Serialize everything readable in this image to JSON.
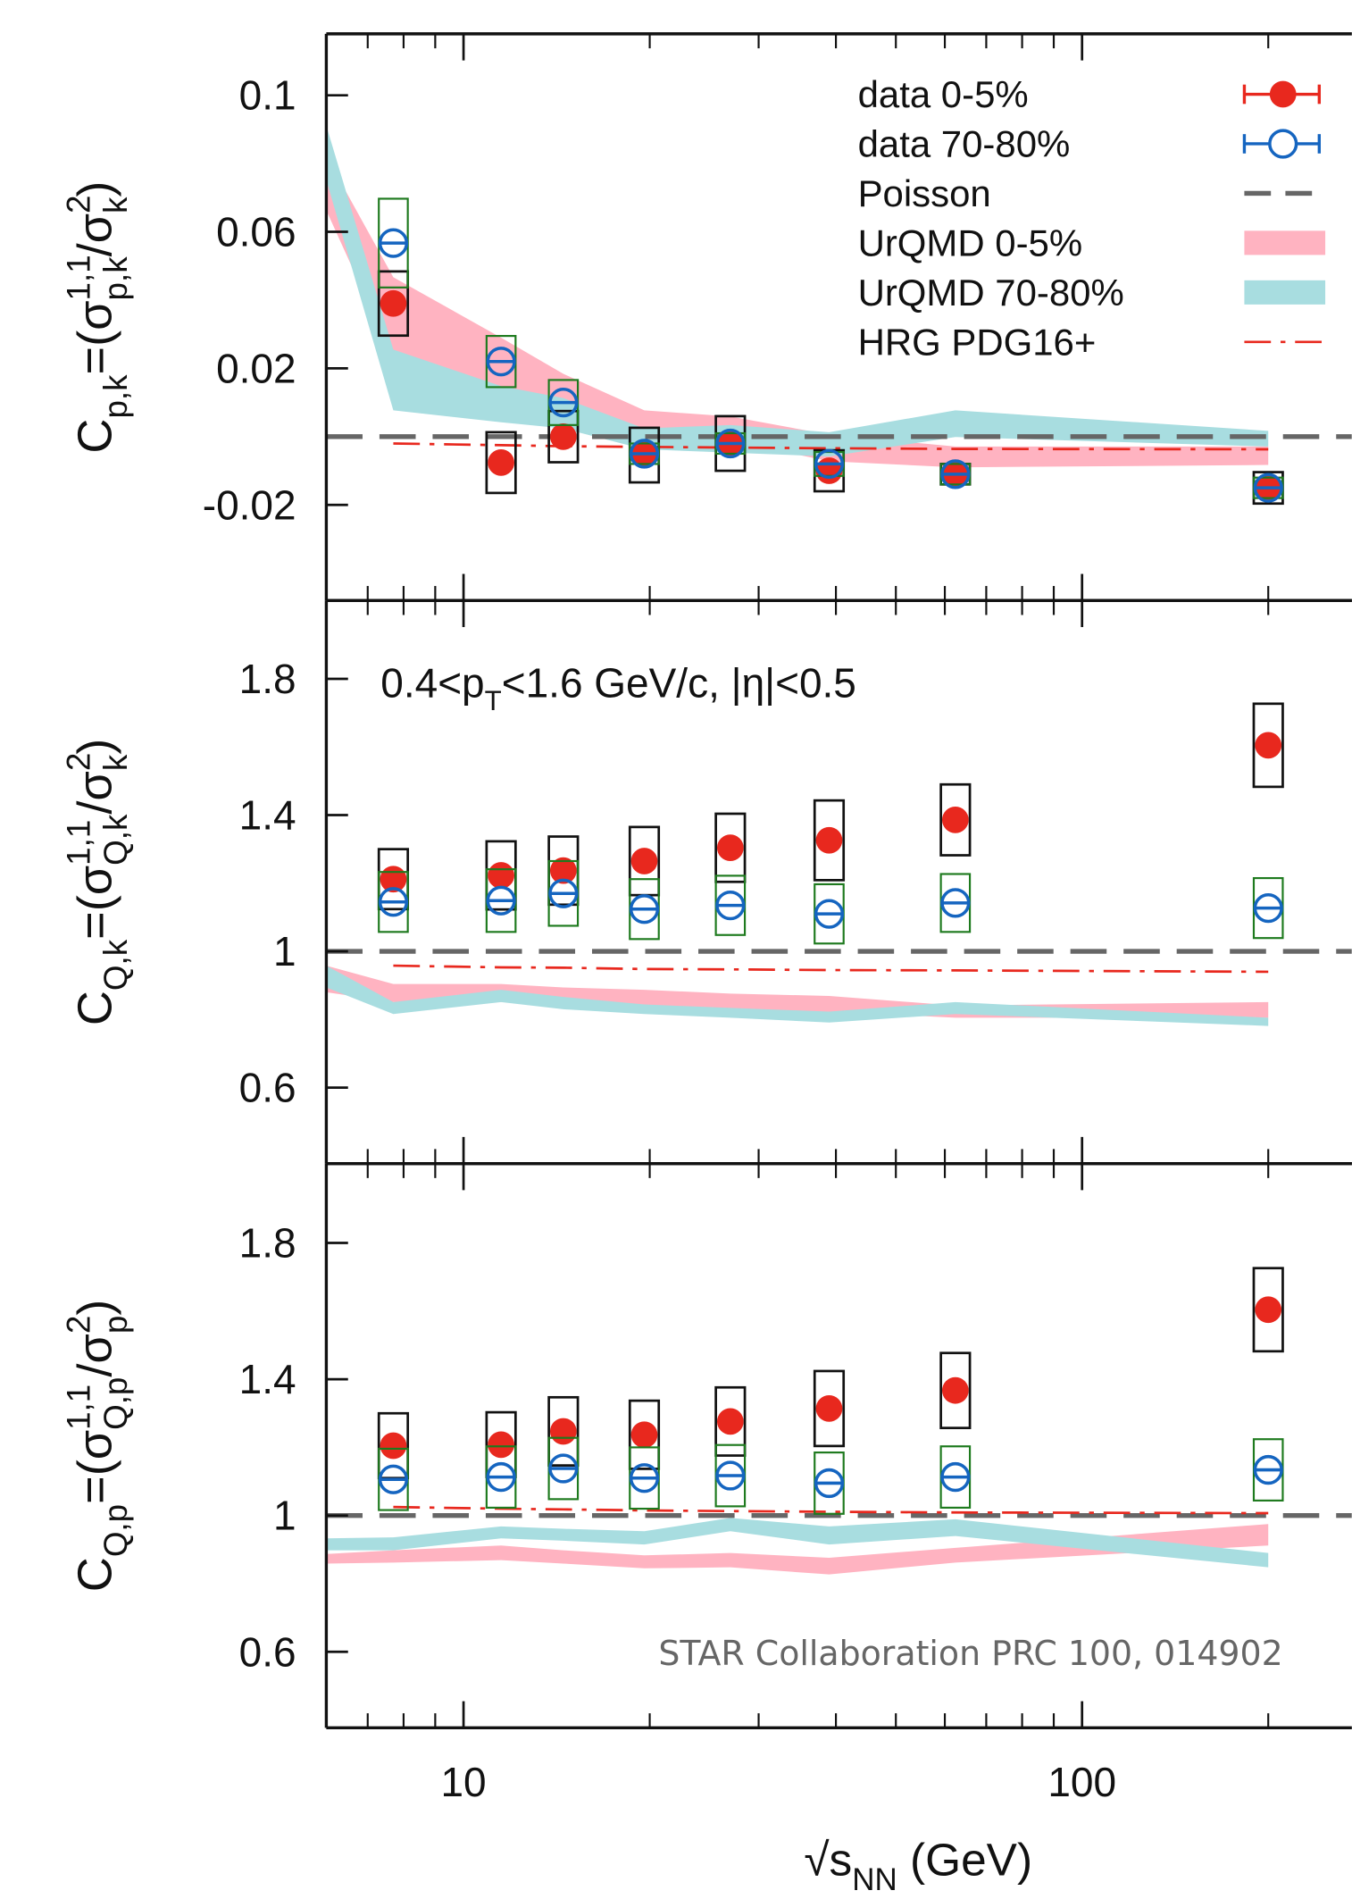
{
  "chart_data": [
    {
      "type": "scatter",
      "y_label": [
        {
          "text": "C",
          "sub": "p,k"
        },
        {
          "text": "=(σ",
          "sup": "1,1",
          "sub": "p,k"
        },
        {
          "text": "/σ",
          "sup": "2",
          "sub": "k"
        },
        {
          "text": ")"
        }
      ],
      "xlim": [
        6,
        273
      ],
      "xticks": [
        10,
        100
      ],
      "xminorticks": [
        7,
        8,
        9,
        20,
        30,
        40,
        50,
        60,
        70,
        80,
        90,
        200
      ],
      "ylim": [
        -0.048,
        0.118
      ],
      "yticks": [
        -0.02,
        0.02,
        0.06,
        0.1
      ],
      "legend": "upper right",
      "series": [
        {
          "name": "data 0-5%",
          "kind": "points",
          "marker": "filled",
          "color": "#e8281e",
          "sys_color": "#111111",
          "x": [
            7.7,
            11.5,
            14.5,
            19.6,
            27,
            39,
            62.4,
            200
          ],
          "values": [
            0.039,
            -0.0076,
            0.0,
            -0.0054,
            -0.002,
            -0.01,
            -0.011,
            -0.015
          ],
          "sys": [
            0.0094,
            0.0089,
            0.0075,
            0.008,
            0.008,
            0.006,
            0.003,
            0.0046
          ]
        },
        {
          "name": "data 70-80%",
          "kind": "points",
          "marker": "open",
          "color": "#1565c0",
          "sys_color": "#1e7a1e",
          "x": [
            7.7,
            11.5,
            14.5,
            19.6,
            27,
            39,
            62.4,
            200
          ],
          "values": [
            0.0567,
            0.022,
            0.01,
            -0.005,
            -0.002,
            -0.008,
            -0.011,
            -0.015
          ],
          "sys": [
            0.013,
            0.0075,
            0.0066,
            0.003,
            0.003,
            0.0035,
            0.003,
            0.003
          ]
        },
        {
          "name": "Poisson",
          "kind": "hline",
          "color": "#666666",
          "y": 0
        },
        {
          "name": "UrQMD 0-5%",
          "kind": "band",
          "color": "#ffb3c1",
          "x": [
            6,
            7.7,
            11.5,
            14.5,
            19.6,
            27,
            39,
            62.4,
            200
          ],
          "lower": [
            0.0663,
            0.023,
            0.0113,
            0.0095,
            0.0006,
            -0.0012,
            -0.0072,
            -0.009,
            -0.0083
          ],
          "upper": [
            0.0822,
            0.0467,
            0.029,
            0.0184,
            0.0077,
            0.0059,
            0.0006,
            -0.0029,
            -0.0029
          ]
        },
        {
          "name": "UrQMD 70-80%",
          "kind": "band",
          "color": "#a8dde0",
          "x": [
            6,
            7.7,
            11.5,
            14.5,
            19.6,
            27,
            39,
            62.4,
            200
          ],
          "lower": [
            0.0752,
            0.0077,
            0.0042,
            0.0024,
            -0.0037,
            -0.0047,
            -0.0058,
            -0.0001,
            -0.0029
          ],
          "upper": [
            0.0911,
            0.0255,
            0.0148,
            0.0113,
            0.0024,
            0.0034,
            0.0013,
            0.0077,
            0.0017
          ]
        },
        {
          "name": "HRG PDG16+",
          "kind": "line",
          "color": "#e8281e",
          "x": [
            7.7,
            11.5,
            14.5,
            19.6,
            27,
            39,
            62.4,
            200
          ],
          "values": [
            -0.002,
            -0.0025,
            -0.0028,
            -0.003,
            -0.0032,
            -0.0034,
            -0.0036,
            -0.0037
          ]
        }
      ]
    },
    {
      "type": "scatter",
      "y_label": [
        {
          "text": "C",
          "sub": "Q,k"
        },
        {
          "text": "=(σ",
          "sup": "1,1",
          "sub": "Q,k"
        },
        {
          "text": "/σ",
          "sup": "2",
          "sub": "k"
        },
        {
          "text": ")"
        }
      ],
      "annotation": [
        {
          "text": "0.4<p",
          "sub": "T"
        },
        {
          "text": "<1.6 GeV/c, |η|<0.5"
        }
      ],
      "xlim": [
        6,
        273
      ],
      "xticks": [
        10,
        100
      ],
      "xminorticks": [
        7,
        8,
        9,
        20,
        30,
        40,
        50,
        60,
        70,
        80,
        90,
        200
      ],
      "ylim": [
        0.377,
        2.03
      ],
      "yticks": [
        0.6,
        1,
        1.4,
        1.8
      ],
      "series": [
        {
          "kind": "points",
          "marker": "filled",
          "color": "#e8281e",
          "sys_color": "#111111",
          "x": [
            7.7,
            11.5,
            14.5,
            19.6,
            27,
            39,
            62.4,
            200
          ],
          "values": [
            1.212,
            1.223,
            1.237,
            1.265,
            1.304,
            1.326,
            1.386,
            1.605
          ],
          "sys": [
            0.088,
            0.1,
            0.1,
            0.1,
            0.1,
            0.117,
            0.104,
            0.122
          ]
        },
        {
          "kind": "points",
          "marker": "open",
          "color": "#1565c0",
          "sys_color": "#1e7a1e",
          "x": [
            7.7,
            11.5,
            14.5,
            19.6,
            27,
            39,
            62.4,
            200
          ],
          "values": [
            1.145,
            1.149,
            1.17,
            1.124,
            1.135,
            1.11,
            1.142,
            1.127
          ],
          "sys": [
            0.088,
            0.092,
            0.095,
            0.088,
            0.087,
            0.087,
            0.085,
            0.088
          ]
        },
        {
          "kind": "hline",
          "color": "#666666",
          "y": 1
        },
        {
          "kind": "band",
          "color": "#ffb3c1",
          "x": [
            6,
            7.7,
            11.5,
            14.5,
            19.6,
            27,
            39,
            62.4,
            200
          ],
          "lower": [
            0.88,
            0.851,
            0.851,
            0.844,
            0.841,
            0.823,
            0.823,
            0.805,
            0.805
          ],
          "upper": [
            0.958,
            0.904,
            0.904,
            0.894,
            0.887,
            0.876,
            0.869,
            0.841,
            0.851
          ]
        },
        {
          "kind": "band",
          "color": "#a8dde0",
          "x": [
            6,
            7.7,
            11.5,
            14.5,
            19.6,
            27,
            39,
            62.4,
            200
          ],
          "lower": [
            0.894,
            0.816,
            0.851,
            0.83,
            0.816,
            0.805,
            0.791,
            0.816,
            0.781
          ],
          "upper": [
            0.958,
            0.851,
            0.887,
            0.866,
            0.844,
            0.834,
            0.823,
            0.851,
            0.805
          ]
        },
        {
          "kind": "line",
          "color": "#e8281e",
          "x": [
            7.7,
            11.5,
            14.5,
            19.6,
            27,
            39,
            62.4,
            200
          ],
          "values": [
            0.958,
            0.953,
            0.952,
            0.948,
            0.947,
            0.945,
            0.944,
            0.94
          ]
        }
      ]
    },
    {
      "type": "scatter",
      "y_label": [
        {
          "text": "C",
          "sub": "Q,p"
        },
        {
          "text": "=(σ",
          "sup": "1,1",
          "sub": "Q,p"
        },
        {
          "text": "/σ",
          "sup": "2",
          "sub": "p"
        },
        {
          "text": ")"
        }
      ],
      "x_label": [
        {
          "text": "√s",
          "sub": "NN"
        },
        {
          "text": "  (GeV)"
        }
      ],
      "credit": "STAR Collaboration PRC 100, 014902",
      "xlim": [
        6,
        273
      ],
      "xticks": [
        10,
        100
      ],
      "xminorticks": [
        7,
        8,
        9,
        20,
        30,
        40,
        50,
        60,
        70,
        80,
        90,
        200
      ],
      "ylim": [
        0.377,
        2.033
      ],
      "yticks": [
        0.6,
        1,
        1.4,
        1.8
      ],
      "series": [
        {
          "kind": "points",
          "marker": "filled",
          "color": "#e8281e",
          "sys_color": "#111111",
          "x": [
            7.7,
            11.5,
            14.5,
            19.6,
            27,
            39,
            62.4,
            200
          ],
          "values": [
            1.205,
            1.208,
            1.247,
            1.237,
            1.276,
            1.314,
            1.367,
            1.604
          ],
          "sys": [
            0.095,
            0.095,
            0.1,
            0.1,
            0.1,
            0.11,
            0.11,
            0.122
          ]
        },
        {
          "kind": "points",
          "marker": "open",
          "color": "#1565c0",
          "sys_color": "#1e7a1e",
          "x": [
            7.7,
            11.5,
            14.5,
            19.6,
            27,
            39,
            62.4,
            200
          ],
          "values": [
            1.106,
            1.113,
            1.138,
            1.11,
            1.117,
            1.095,
            1.113,
            1.134
          ],
          "sys": [
            0.09,
            0.09,
            0.09,
            0.09,
            0.09,
            0.09,
            0.09,
            0.09
          ]
        },
        {
          "kind": "hline",
          "color": "#666666",
          "y": 1
        },
        {
          "kind": "band",
          "color": "#ffb3c1",
          "x": [
            6,
            7.7,
            11.5,
            14.5,
            19.6,
            27,
            39,
            62.4,
            200
          ],
          "lower": [
            0.859,
            0.862,
            0.869,
            0.859,
            0.845,
            0.848,
            0.827,
            0.862,
            0.912
          ],
          "upper": [
            0.887,
            0.898,
            0.912,
            0.898,
            0.883,
            0.89,
            0.876,
            0.905,
            0.975
          ]
        },
        {
          "kind": "band",
          "color": "#a8dde0",
          "x": [
            6,
            7.7,
            11.5,
            14.5,
            19.6,
            27,
            39,
            62.4,
            200
          ],
          "lower": [
            0.898,
            0.898,
            0.933,
            0.926,
            0.915,
            0.954,
            0.915,
            0.94,
            0.848
          ],
          "upper": [
            0.933,
            0.936,
            0.968,
            0.961,
            0.954,
            0.993,
            0.968,
            0.989,
            0.89
          ]
        },
        {
          "kind": "line",
          "color": "#e8281e",
          "x": [
            7.7,
            11.5,
            14.5,
            19.6,
            27,
            39,
            62.4,
            200
          ],
          "values": [
            1.025,
            1.02,
            1.018,
            1.015,
            1.013,
            1.011,
            1.009,
            1.007
          ]
        }
      ]
    }
  ]
}
